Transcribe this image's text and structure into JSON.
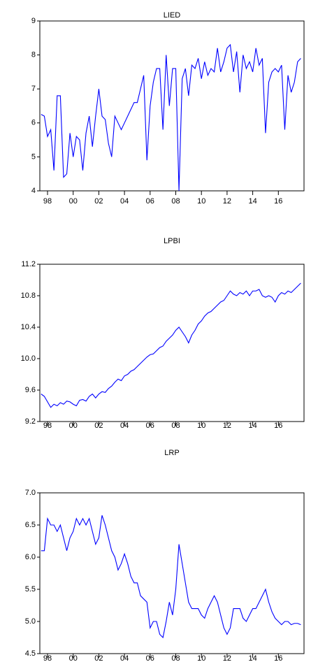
{
  "chart_data": [
    {
      "type": "line",
      "title": "LIED",
      "color": "#0000ff",
      "xlim": [
        1997.4,
        2018.0
      ],
      "ylim": [
        4,
        9
      ],
      "xticks": [
        {
          "value": 1998,
          "label": "98"
        },
        {
          "value": 2000,
          "label": "00"
        },
        {
          "value": 2002,
          "label": "02"
        },
        {
          "value": 2004,
          "label": "04"
        },
        {
          "value": 2006,
          "label": "06"
        },
        {
          "value": 2008,
          "label": "08"
        },
        {
          "value": 2010,
          "label": "10"
        },
        {
          "value": 2012,
          "label": "12"
        },
        {
          "value": 2014,
          "label": "14"
        },
        {
          "value": 2016,
          "label": "16"
        }
      ],
      "yticks": [
        4,
        5,
        6,
        7,
        8,
        9
      ],
      "x": [
        1997.5,
        1997.75,
        1998,
        1998.25,
        1998.5,
        1998.75,
        1999,
        1999.25,
        1999.5,
        1999.75,
        2000,
        2000.25,
        2000.5,
        2000.75,
        2001,
        2001.25,
        2001.5,
        2001.75,
        2002,
        2002.25,
        2002.5,
        2002.75,
        2003,
        2003.25,
        2003.5,
        2003.75,
        2004,
        2004.25,
        2004.5,
        2004.75,
        2005,
        2005.25,
        2005.5,
        2005.75,
        2006,
        2006.25,
        2006.5,
        2006.75,
        2007,
        2007.25,
        2007.5,
        2007.75,
        2008,
        2008.25,
        2008.5,
        2008.75,
        2009,
        2009.25,
        2009.5,
        2009.75,
        2010,
        2010.25,
        2010.5,
        2010.75,
        2011,
        2011.25,
        2011.5,
        2011.75,
        2012,
        2012.25,
        2012.5,
        2012.75,
        2013,
        2013.25,
        2013.5,
        2013.75,
        2014,
        2014.25,
        2014.5,
        2014.75,
        2015,
        2015.25,
        2015.5,
        2015.75,
        2016,
        2016.25,
        2016.5,
        2016.75,
        2017,
        2017.25,
        2017.5,
        2017.75
      ],
      "values": [
        6.25,
        6.2,
        5.6,
        5.8,
        4.6,
        6.8,
        6.8,
        4.4,
        4.5,
        5.7,
        5.0,
        5.6,
        5.5,
        4.6,
        5.7,
        6.2,
        5.3,
        6.2,
        7.0,
        6.2,
        6.1,
        5.4,
        5.0,
        6.2,
        6.0,
        5.8,
        6.0,
        6.2,
        6.4,
        6.6,
        6.6,
        7.0,
        7.4,
        4.9,
        6.5,
        7.2,
        7.6,
        7.6,
        5.8,
        8.0,
        6.5,
        7.6,
        7.6,
        4.0,
        7.3,
        7.6,
        6.8,
        7.7,
        7.6,
        7.9,
        7.3,
        7.8,
        7.4,
        7.6,
        7.5,
        8.2,
        7.5,
        7.8,
        8.2,
        8.3,
        7.5,
        8.1,
        6.9,
        8.0,
        7.6,
        7.8,
        7.5,
        8.2,
        7.7,
        7.9,
        5.7,
        7.2,
        7.5,
        7.6,
        7.5,
        7.7,
        5.8,
        7.4,
        6.9,
        7.2,
        7.8,
        7.9
      ]
    },
    {
      "type": "line",
      "title": "LPBI",
      "color": "#0000ff",
      "xlim": [
        1997.4,
        2018.0
      ],
      "ylim": [
        9.2,
        11.2
      ],
      "xticks": [
        {
          "value": 1998,
          "label": "98"
        },
        {
          "value": 2000,
          "label": "00"
        },
        {
          "value": 2002,
          "label": "02"
        },
        {
          "value": 2004,
          "label": "04"
        },
        {
          "value": 2006,
          "label": "06"
        },
        {
          "value": 2008,
          "label": "08"
        },
        {
          "value": 2010,
          "label": "10"
        },
        {
          "value": 2012,
          "label": "12"
        },
        {
          "value": 2014,
          "label": "14"
        },
        {
          "value": 2016,
          "label": "16"
        }
      ],
      "yticks": [
        9.2,
        9.6,
        {
          "value": 10,
          "label": "10.0"
        },
        10.4,
        10.8,
        11.2
      ],
      "x": [
        1997.5,
        1997.75,
        1998,
        1998.25,
        1998.5,
        1998.75,
        1999,
        1999.25,
        1999.5,
        1999.75,
        2000,
        2000.25,
        2000.5,
        2000.75,
        2001,
        2001.25,
        2001.5,
        2001.75,
        2002,
        2002.25,
        2002.5,
        2002.75,
        2003,
        2003.25,
        2003.5,
        2003.75,
        2004,
        2004.25,
        2004.5,
        2004.75,
        2005,
        2005.25,
        2005.5,
        2005.75,
        2006,
        2006.25,
        2006.5,
        2006.75,
        2007,
        2007.25,
        2007.5,
        2007.75,
        2008,
        2008.25,
        2008.5,
        2008.75,
        2009,
        2009.25,
        2009.5,
        2009.75,
        2010,
        2010.25,
        2010.5,
        2010.75,
        2011,
        2011.25,
        2011.5,
        2011.75,
        2012,
        2012.25,
        2012.5,
        2012.75,
        2013,
        2013.25,
        2013.5,
        2013.75,
        2014,
        2014.25,
        2014.5,
        2014.75,
        2015,
        2015.25,
        2015.5,
        2015.75,
        2016,
        2016.25,
        2016.5,
        2016.75,
        2017,
        2017.25,
        2017.5,
        2017.75
      ],
      "values": [
        9.55,
        9.52,
        9.45,
        9.38,
        9.42,
        9.4,
        9.44,
        9.42,
        9.46,
        9.45,
        9.42,
        9.4,
        9.47,
        9.48,
        9.46,
        9.52,
        9.55,
        9.5,
        9.55,
        9.58,
        9.57,
        9.62,
        9.65,
        9.7,
        9.74,
        9.72,
        9.78,
        9.8,
        9.84,
        9.86,
        9.9,
        9.94,
        9.98,
        10.02,
        10.05,
        10.06,
        10.1,
        10.14,
        10.16,
        10.22,
        10.26,
        10.3,
        10.36,
        10.4,
        10.34,
        10.28,
        10.2,
        10.3,
        10.36,
        10.44,
        10.48,
        10.54,
        10.58,
        10.6,
        10.64,
        10.68,
        10.72,
        10.74,
        10.8,
        10.86,
        10.82,
        10.8,
        10.84,
        10.82,
        10.86,
        10.8,
        10.86,
        10.86,
        10.88,
        10.8,
        10.78,
        10.8,
        10.78,
        10.72,
        10.8,
        10.84,
        10.82,
        10.86,
        10.84,
        10.88,
        10.92,
        10.96
      ]
    },
    {
      "type": "line",
      "title": "LRP",
      "color": "#0000ff",
      "xlim": [
        1997.4,
        2018.0
      ],
      "ylim": [
        4.5,
        7.0
      ],
      "xticks": [
        {
          "value": 1998,
          "label": "98"
        },
        {
          "value": 2000,
          "label": "00"
        },
        {
          "value": 2002,
          "label": "02"
        },
        {
          "value": 2004,
          "label": "04"
        },
        {
          "value": 2006,
          "label": "06"
        },
        {
          "value": 2008,
          "label": "08"
        },
        {
          "value": 2010,
          "label": "10"
        },
        {
          "value": 2012,
          "label": "12"
        },
        {
          "value": 2014,
          "label": "14"
        },
        {
          "value": 2016,
          "label": "16"
        }
      ],
      "yticks": [
        4.5,
        {
          "value": 5,
          "label": "5.0"
        },
        5.5,
        {
          "value": 6,
          "label": "6.0"
        },
        6.5,
        {
          "value": 7,
          "label": "7.0"
        }
      ],
      "x": [
        1997.5,
        1997.75,
        1998,
        1998.25,
        1998.5,
        1998.75,
        1999,
        1999.25,
        1999.5,
        1999.75,
        2000,
        2000.25,
        2000.5,
        2000.75,
        2001,
        2001.25,
        2001.5,
        2001.75,
        2002,
        2002.25,
        2002.5,
        2002.75,
        2003,
        2003.25,
        2003.5,
        2003.75,
        2004,
        2004.25,
        2004.5,
        2004.75,
        2005,
        2005.25,
        2005.5,
        2005.75,
        2006,
        2006.25,
        2006.5,
        2006.75,
        2007,
        2007.25,
        2007.5,
        2007.75,
        2008,
        2008.25,
        2008.5,
        2008.75,
        2009,
        2009.25,
        2009.5,
        2009.75,
        2010,
        2010.25,
        2010.5,
        2010.75,
        2011,
        2011.25,
        2011.5,
        2011.75,
        2012,
        2012.25,
        2012.5,
        2012.75,
        2013,
        2013.25,
        2013.5,
        2013.75,
        2014,
        2014.25,
        2014.5,
        2014.75,
        2015,
        2015.25,
        2015.5,
        2015.75,
        2016,
        2016.25,
        2016.5,
        2016.75,
        2017,
        2017.25,
        2017.5,
        2017.75
      ],
      "values": [
        6.1,
        6.1,
        6.6,
        6.5,
        6.5,
        6.4,
        6.5,
        6.3,
        6.1,
        6.3,
        6.4,
        6.6,
        6.5,
        6.6,
        6.5,
        6.6,
        6.4,
        6.2,
        6.3,
        6.65,
        6.5,
        6.3,
        6.1,
        6.0,
        5.8,
        5.9,
        6.05,
        5.9,
        5.7,
        5.6,
        5.6,
        5.4,
        5.35,
        5.3,
        4.9,
        5.0,
        5.0,
        4.8,
        4.75,
        5.0,
        5.3,
        5.1,
        5.5,
        6.2,
        5.9,
        5.6,
        5.3,
        5.2,
        5.2,
        5.2,
        5.1,
        5.05,
        5.2,
        5.3,
        5.4,
        5.3,
        5.1,
        4.9,
        4.8,
        4.9,
        5.2,
        5.2,
        5.2,
        5.05,
        5.0,
        5.1,
        5.2,
        5.2,
        5.3,
        5.4,
        5.5,
        5.3,
        5.15,
        5.05,
        5.0,
        4.95,
        5.0,
        5.0,
        4.95,
        4.97,
        4.97,
        4.95
      ]
    }
  ]
}
